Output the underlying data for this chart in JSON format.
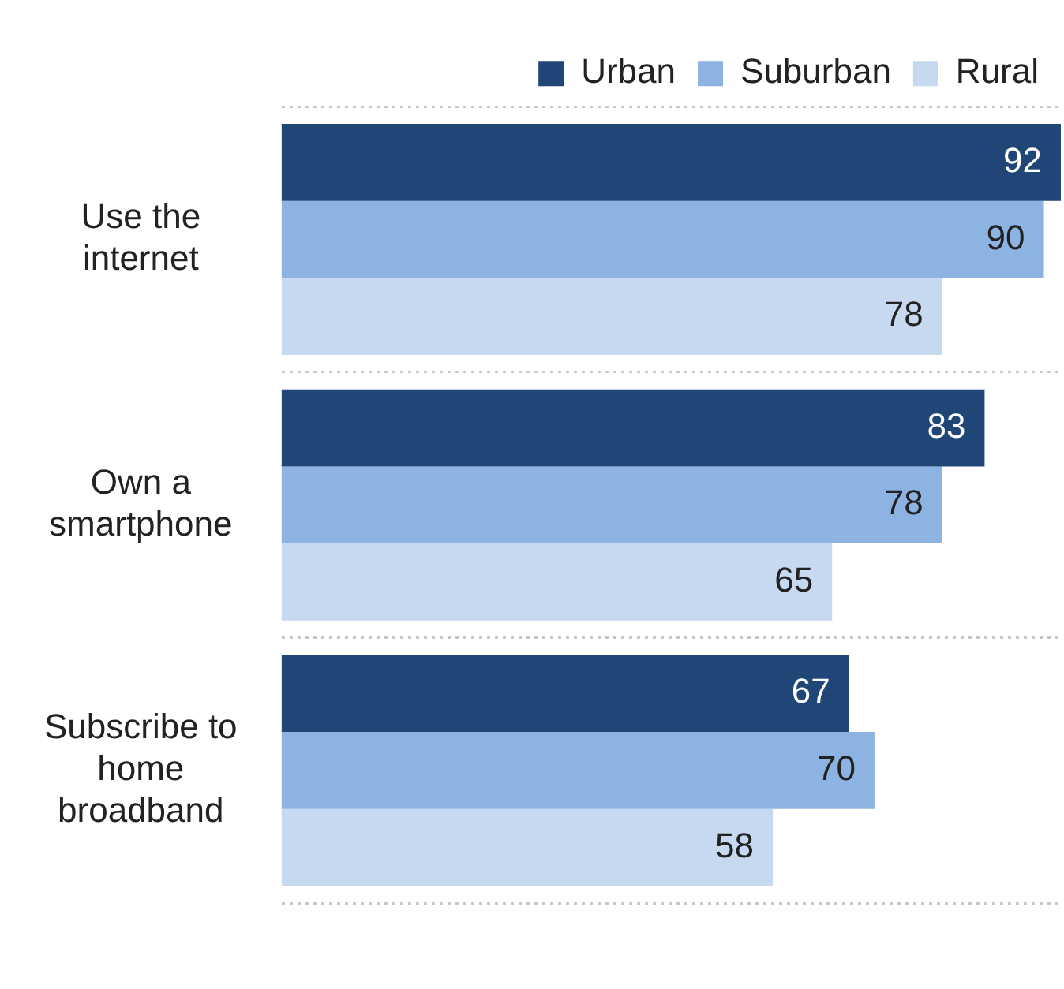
{
  "chart_data": {
    "type": "bar",
    "orientation": "horizontal",
    "categories": [
      "Use the internet",
      "Own a smartphone",
      "Subscribe to home broadband"
    ],
    "series": [
      {
        "name": "Urban",
        "color": "#1f4677",
        "values": [
          92,
          83,
          67
        ]
      },
      {
        "name": "Suburban",
        "color": "#8db3e2",
        "values": [
          90,
          78,
          70
        ]
      },
      {
        "name": "Rural",
        "color": "#c6d9f0",
        "values": [
          78,
          65,
          58
        ]
      }
    ],
    "xlim": [
      0,
      92
    ],
    "tick_labels": "y",
    "data_labels": true,
    "legend": "top",
    "grid": "y",
    "line_style": "dotted"
  }
}
